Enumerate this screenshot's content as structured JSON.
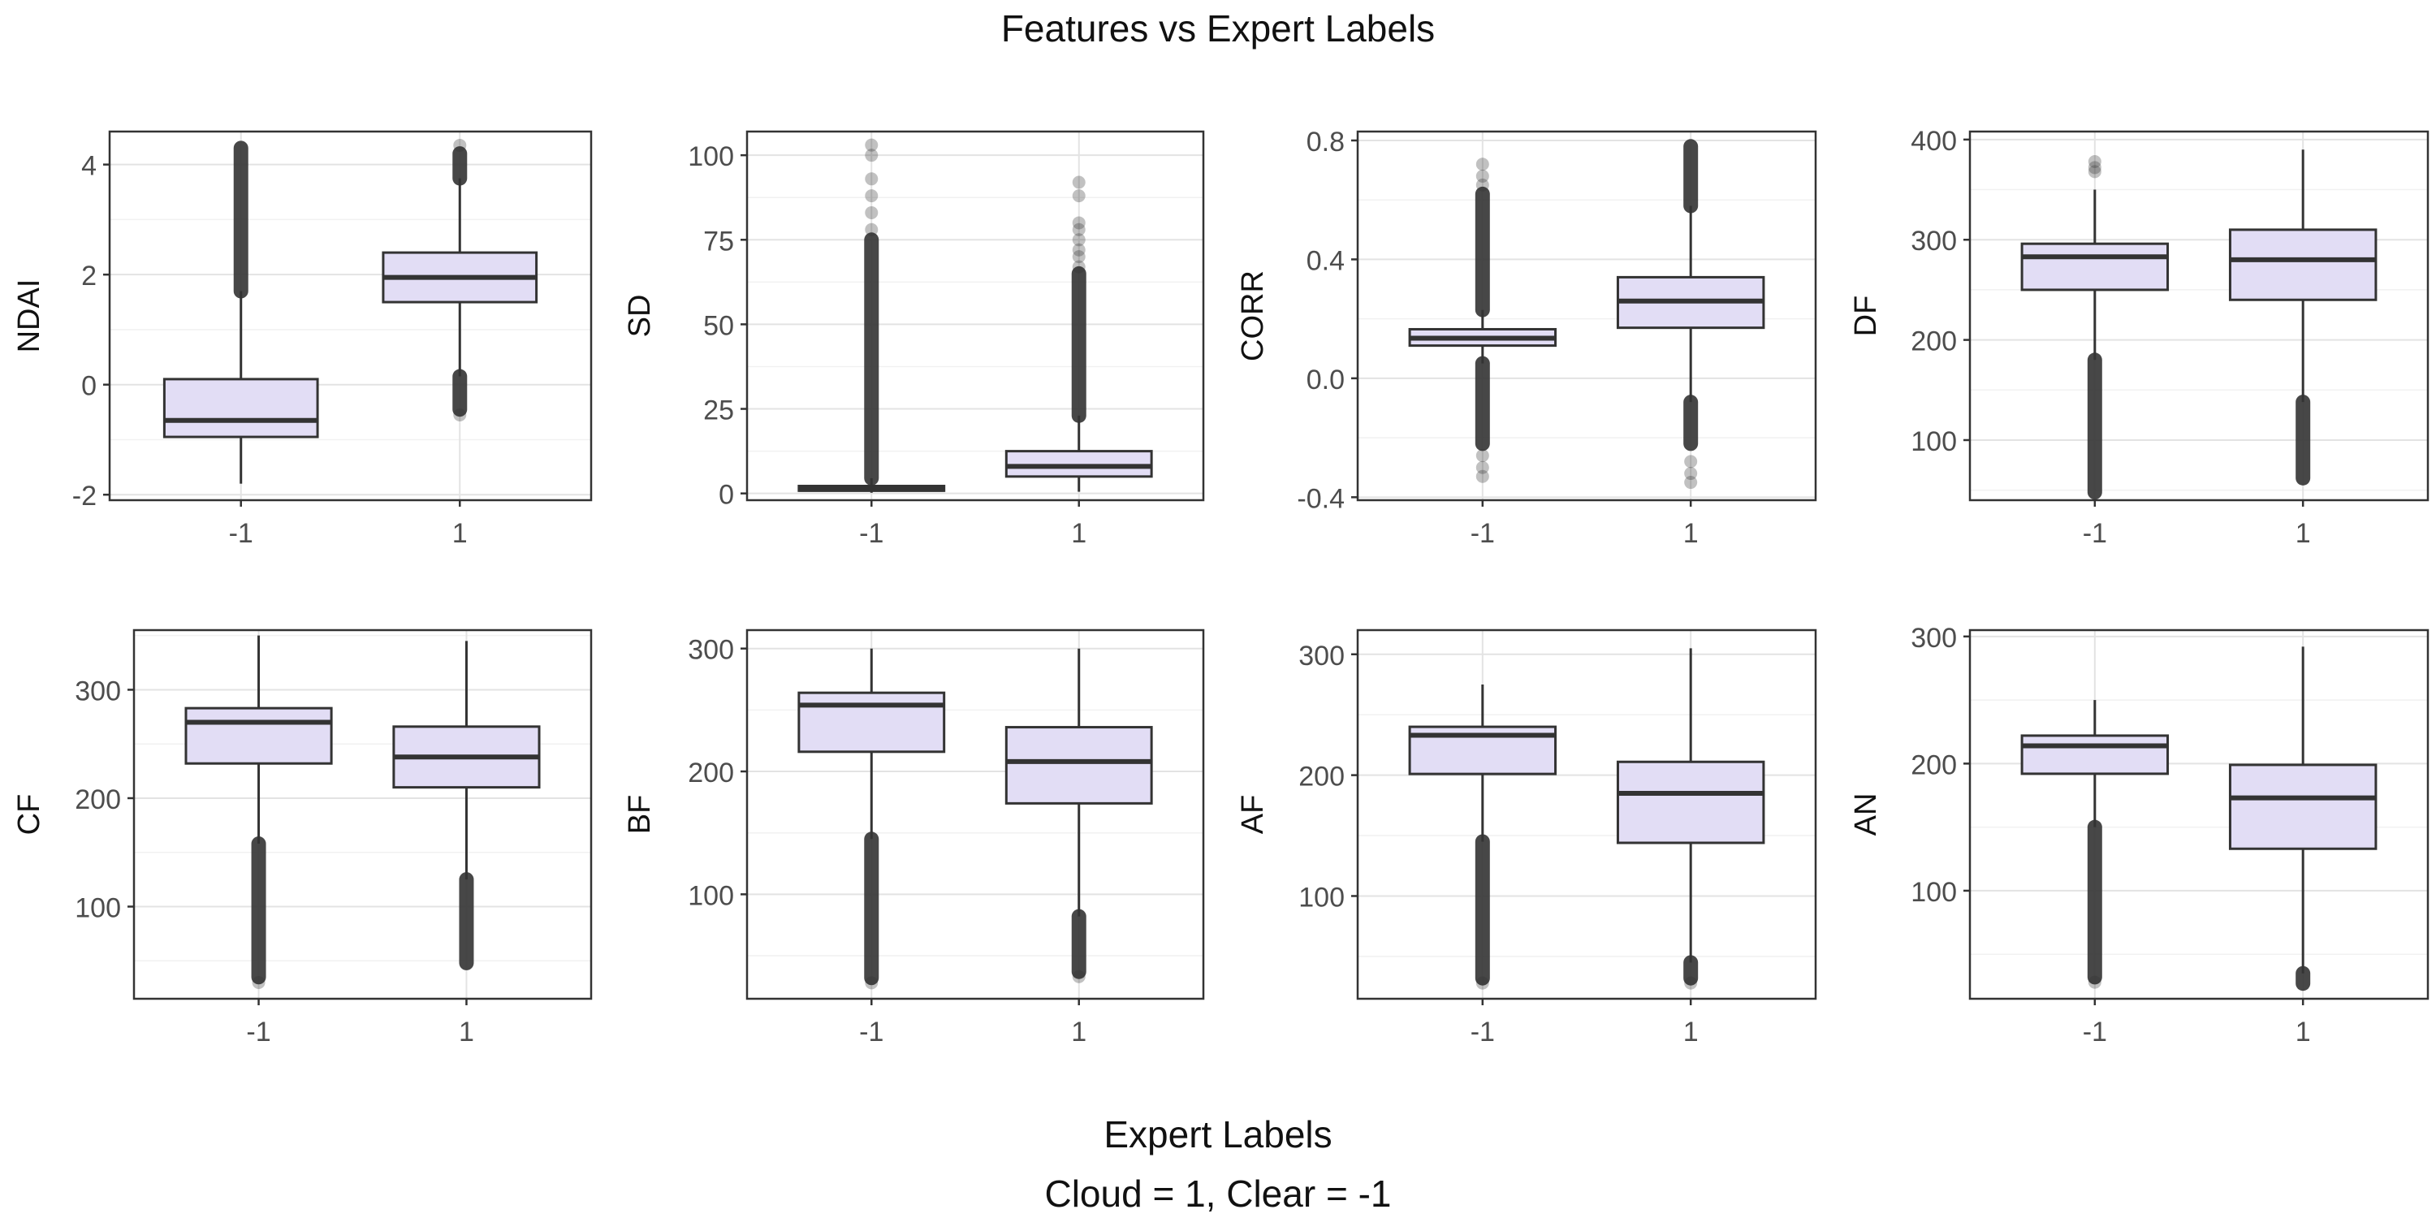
{
  "title": "Features vs Expert Labels",
  "x_axis_title": "Expert Labels",
  "x_axis_subtitle": "Cloud = 1, Clear = -1",
  "colors": {
    "box_fill": "#e2ddf5",
    "box_stroke": "#333333",
    "panel_border": "#333333",
    "grid_major": "#e3e3e3",
    "grid_minor": "#f1f1f1",
    "text": "#4d4d4d",
    "outlier": "#333333"
  },
  "chart_data": [
    {
      "type": "box",
      "ylabel": "NDAI",
      "categories": [
        "-1",
        "1"
      ],
      "ylim": [
        -2.1,
        4.6
      ],
      "yticks": [
        -2,
        0,
        2,
        4
      ],
      "boxes": [
        {
          "category": "-1",
          "q1": -0.95,
          "median": -0.65,
          "q3": 0.1,
          "whisker_low": -1.8,
          "whisker_high": 1.7,
          "outliers_dense": [
            [
              1.7,
              4.3
            ]
          ],
          "outliers_sparse": []
        },
        {
          "category": "1",
          "q1": 1.5,
          "median": 1.95,
          "q3": 2.4,
          "whisker_low": 0.15,
          "whisker_high": 3.75,
          "outliers_dense": [
            [
              -0.45,
              0.15
            ],
            [
              3.75,
              4.2
            ]
          ],
          "outliers_sparse": [
            -0.55,
            4.35
          ]
        }
      ]
    },
    {
      "type": "box",
      "ylabel": "SD",
      "categories": [
        "-1",
        "1"
      ],
      "ylim": [
        -2,
        107
      ],
      "yticks": [
        0,
        25,
        50,
        75,
        100
      ],
      "boxes": [
        {
          "category": "-1",
          "q1": 0.8,
          "median": 1.2,
          "q3": 2.2,
          "whisker_low": 0.2,
          "whisker_high": 4.5,
          "outliers_dense": [
            [
              4.5,
              75
            ]
          ],
          "outliers_sparse": [
            78,
            83,
            88,
            93,
            100,
            103
          ]
        },
        {
          "category": "1",
          "q1": 5,
          "median": 8,
          "q3": 12.5,
          "whisker_low": 0.5,
          "whisker_high": 23,
          "outliers_dense": [
            [
              23,
              65
            ]
          ],
          "outliers_sparse": [
            67,
            70,
            72,
            75,
            78,
            80,
            88,
            92
          ]
        }
      ]
    },
    {
      "type": "box",
      "ylabel": "CORR",
      "categories": [
        "-1",
        "1"
      ],
      "ylim": [
        -0.41,
        0.83
      ],
      "yticks": [
        -0.4,
        0.0,
        0.4,
        0.8
      ],
      "boxes": [
        {
          "category": "-1",
          "q1": 0.11,
          "median": 0.135,
          "q3": 0.165,
          "whisker_low": 0.05,
          "whisker_high": 0.23,
          "outliers_dense": [
            [
              -0.22,
              0.05
            ],
            [
              0.23,
              0.62
            ]
          ],
          "outliers_sparse": [
            -0.26,
            -0.3,
            -0.33,
            0.65,
            0.68,
            0.72
          ]
        },
        {
          "category": "1",
          "q1": 0.17,
          "median": 0.26,
          "q3": 0.34,
          "whisker_low": -0.08,
          "whisker_high": 0.58,
          "outliers_dense": [
            [
              -0.22,
              -0.08
            ],
            [
              0.58,
              0.78
            ]
          ],
          "outliers_sparse": [
            -0.28,
            -0.32,
            -0.35
          ]
        }
      ]
    },
    {
      "type": "box",
      "ylabel": "DF",
      "categories": [
        "-1",
        "1"
      ],
      "ylim": [
        40,
        408
      ],
      "yticks": [
        100,
        200,
        300,
        400
      ],
      "boxes": [
        {
          "category": "-1",
          "q1": 250,
          "median": 283,
          "q3": 296,
          "whisker_low": 180,
          "whisker_high": 350,
          "outliers_dense": [
            [
              48,
              180
            ]
          ],
          "outliers_sparse": [
            368,
            372,
            378
          ]
        },
        {
          "category": "1",
          "q1": 240,
          "median": 280,
          "q3": 310,
          "whisker_low": 138,
          "whisker_high": 390,
          "outliers_dense": [
            [
              62,
              138
            ]
          ],
          "outliers_sparse": []
        }
      ]
    },
    {
      "type": "box",
      "ylabel": "CF",
      "categories": [
        "-1",
        "1"
      ],
      "ylim": [
        15,
        355
      ],
      "yticks": [
        100,
        200,
        300
      ],
      "boxes": [
        {
          "category": "-1",
          "q1": 232,
          "median": 270,
          "q3": 283,
          "whisker_low": 158,
          "whisker_high": 350,
          "outliers_dense": [
            [
              35,
              158
            ]
          ],
          "outliers_sparse": [
            30
          ]
        },
        {
          "category": "1",
          "q1": 210,
          "median": 238,
          "q3": 266,
          "whisker_low": 125,
          "whisker_high": 345,
          "outliers_dense": [
            [
              48,
              125
            ]
          ],
          "outliers_sparse": []
        }
      ]
    },
    {
      "type": "box",
      "ylabel": "BF",
      "categories": [
        "-1",
        "1"
      ],
      "ylim": [
        15,
        315
      ],
      "yticks": [
        100,
        200,
        300
      ],
      "boxes": [
        {
          "category": "-1",
          "q1": 216,
          "median": 254,
          "q3": 264,
          "whisker_low": 145,
          "whisker_high": 300,
          "outliers_dense": [
            [
              32,
              145
            ]
          ],
          "outliers_sparse": [
            28
          ]
        },
        {
          "category": "1",
          "q1": 174,
          "median": 208,
          "q3": 236,
          "whisker_low": 82,
          "whisker_high": 300,
          "outliers_dense": [
            [
              37,
              82
            ]
          ],
          "outliers_sparse": [
            33
          ]
        }
      ]
    },
    {
      "type": "box",
      "ylabel": "AF",
      "categories": [
        "-1",
        "1"
      ],
      "ylim": [
        15,
        320
      ],
      "yticks": [
        100,
        200,
        300
      ],
      "boxes": [
        {
          "category": "-1",
          "q1": 201,
          "median": 233,
          "q3": 240,
          "whisker_low": 145,
          "whisker_high": 275,
          "outliers_dense": [
            [
              32,
              145
            ]
          ],
          "outliers_sparse": [
            28
          ]
        },
        {
          "category": "1",
          "q1": 144,
          "median": 185,
          "q3": 211,
          "whisker_low": 45,
          "whisker_high": 305,
          "outliers_dense": [
            [
              32,
              45
            ]
          ],
          "outliers_sparse": [
            28
          ]
        }
      ]
    },
    {
      "type": "box",
      "ylabel": "AN",
      "categories": [
        "-1",
        "1"
      ],
      "ylim": [
        15,
        305
      ],
      "yticks": [
        100,
        200,
        300
      ],
      "boxes": [
        {
          "category": "-1",
          "q1": 192,
          "median": 214,
          "q3": 222,
          "whisker_low": 150,
          "whisker_high": 250,
          "outliers_dense": [
            [
              32,
              150
            ]
          ],
          "outliers_sparse": [
            28
          ]
        },
        {
          "category": "1",
          "q1": 133,
          "median": 173,
          "q3": 199,
          "whisker_low": 35,
          "whisker_high": 292,
          "outliers_dense": [
            [
              27,
              35
            ]
          ],
          "outliers_sparse": []
        }
      ]
    }
  ]
}
